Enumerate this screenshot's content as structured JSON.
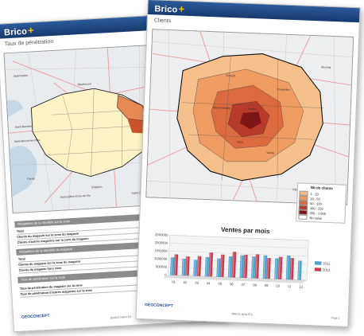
{
  "brand": {
    "name": "Brico",
    "plus": "+"
  },
  "back_page": {
    "title": "Taux de pénétration",
    "map_labels": [
      "Saint-Nazaire",
      "Saint-Brevin-les-Pins",
      "Pornic",
      "Saint-Gilles-Croix-de-Vie",
      "Challans",
      "Machecoul",
      "Saint-Jean-de-Monts",
      "Noirmoutier",
      "Clisson"
    ],
    "sections": [
      {
        "title": "Répartition de la clientèle sur la zone",
        "rows": [
          "Total",
          "Clients du magasin sur la zone du magasin",
          "Clients d'autres magasins sur la zone du magasin"
        ]
      },
      {
        "title": "Répartition de la clientèle du magasin",
        "rows": [
          "Total",
          "Clients du magasin sur la zone du magasin",
          "Clients du magasin hors zone"
        ]
      },
      {
        "title": "Taux de pénétration sur la zone",
        "rows": [
          "Taux de pénétration du magasin sur la zone",
          "Taux de pénétration d'autres magasins sur la zone"
        ]
      }
    ],
    "footer_logo": "GEOCONCEPT",
    "footer_text": "BRICO NANTES"
  },
  "front_page": {
    "title": "Clients",
    "map_labels": [
      "Nantes",
      "Saint-Herblain",
      "Rezé",
      "Vertou",
      "Carquefou",
      "Orvault",
      "Ancenis",
      "Clisson"
    ],
    "legend": {
      "title": "Nb de clients",
      "items": [
        {
          "label": "1 - 20",
          "color": "#f6c08d"
        },
        {
          "label": "20 - 50",
          "color": "#ee9c62"
        },
        {
          "label": "50 - 100",
          "color": "#db6a3f"
        },
        {
          "label": "100 - 250",
          "color": "#b83b2a"
        },
        {
          "label": "250 - 1 000",
          "color": "#7d1616"
        },
        {
          "label": "No value",
          "color": "#ffffff"
        }
      ]
    },
    "footer_logo": "GEOCONCEPT",
    "footer_text": "BRICO NANTES",
    "footer_page": "Page 1"
  },
  "chart_data": {
    "type": "bar",
    "title": "Ventes par mois",
    "categories": [
      "01",
      "02",
      "03",
      "04",
      "05",
      "06",
      "07",
      "08",
      "09",
      "10",
      "11",
      "12"
    ],
    "series": [
      {
        "name": "2011",
        "color": "#43a9d8",
        "values": [
          1100000,
          1050000,
          1000000,
          1200000,
          1150000,
          1300000,
          1400000,
          1350000,
          1450000,
          1300000,
          1500000,
          1200000
        ]
      },
      {
        "name": "2012",
        "color": "#d2394f",
        "values": [
          1300000,
          1200000,
          1250000,
          1500000,
          1400000,
          1600000,
          1450000,
          1500000,
          1300000,
          1400000,
          1350000,
          0
        ]
      }
    ],
    "y_ticks": [
      "2500000",
      "2000000",
      "1500000",
      "1000000",
      "500000",
      "0"
    ],
    "ylim": [
      0,
      2500000
    ],
    "legend_position": "right"
  }
}
